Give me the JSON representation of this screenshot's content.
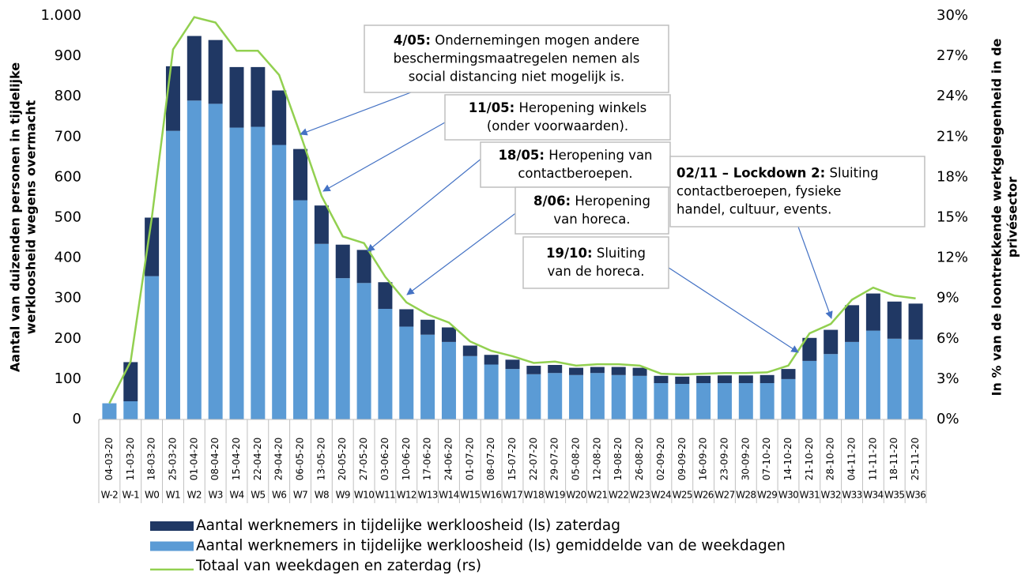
{
  "chart_data": {
    "type": "bar-line",
    "ylabel": [
      "Aantal van duizenden personen in tijdelijke",
      "werkloosheid wegens overmacht"
    ],
    "y2label": [
      "In % van de loontrekkende werkgelegenheid in de",
      "privésector"
    ],
    "categories": [
      "04-03-20",
      "11-03-20",
      "18-03-20",
      "25-03-20",
      "01-04-20",
      "08-04-20",
      "15-04-20",
      "22-04-20",
      "29-04-20",
      "06-05-20",
      "13-05-20",
      "20-05-20",
      "27-05-20",
      "03-06-20",
      "10-06-20",
      "17-06-20",
      "24-06-20",
      "01-07-20",
      "08-07-20",
      "15-07-20",
      "22-07-20",
      "29-07-20",
      "05-08-20",
      "12-08-20",
      "19-08-20",
      "26-08-20",
      "02-09-20",
      "09-09-20",
      "16-09-20",
      "23-09-20",
      "30-09-20",
      "07-10-20",
      "14-10-20",
      "21-10-20",
      "28-10-20",
      "04-11-20",
      "11-11-20",
      "18-11-20",
      "25-11-20"
    ],
    "week_labels": [
      "W-2",
      "W-1",
      "W0",
      "W1",
      "W2",
      "W3",
      "W4",
      "W5",
      "W6",
      "W7",
      "W8",
      "W9",
      "W10",
      "W11",
      "W12",
      "W13",
      "W14",
      "W15",
      "W16",
      "W17",
      "W18",
      "W19",
      "W20",
      "W21",
      "W22",
      "W23",
      "W24",
      "W25",
      "W26",
      "W27",
      "W28",
      "W29",
      "W30",
      "W31",
      "W32",
      "W33",
      "W34",
      "W35",
      "W36"
    ],
    "series": [
      {
        "name": "Aantal werknemers in tijdelijke werkloosheid (ls) gemiddelde van de weekdagen",
        "color": "#5b9bd5",
        "stack": true,
        "values": [
          40,
          45,
          355,
          715,
          790,
          782,
          723,
          725,
          680,
          543,
          435,
          350,
          338,
          274,
          230,
          210,
          192,
          157,
          136,
          125,
          112,
          115,
          110,
          115,
          110,
          108,
          90,
          88,
          90,
          90,
          90,
          90,
          100,
          145,
          162,
          192,
          220,
          200,
          198
        ]
      },
      {
        "name": "Aantal werknemers in tijdelijke werkloosheid (ls) zaterdag",
        "color": "#203864",
        "stack": true,
        "values": [
          0,
          97,
          145,
          160,
          160,
          158,
          150,
          148,
          135,
          127,
          95,
          83,
          82,
          66,
          43,
          37,
          36,
          26,
          24,
          23,
          21,
          20,
          18,
          15,
          20,
          20,
          18,
          18,
          18,
          19,
          19,
          20,
          25,
          57,
          60,
          91,
          92,
          92,
          89
        ]
      },
      {
        "name": "Totaal van weekdagen en zaterdag (rs)",
        "color": "#92d050",
        "axis": "y2",
        "values": [
          1.2,
          4.3,
          15,
          27.5,
          29.9,
          29.5,
          27.4,
          27.4,
          25.6,
          21.2,
          16.6,
          13.6,
          13.1,
          10.6,
          8.7,
          7.8,
          7.2,
          5.8,
          5.1,
          4.7,
          4.2,
          4.3,
          4.0,
          4.1,
          4.1,
          4.0,
          3.4,
          3.35,
          3.4,
          3.45,
          3.45,
          3.5,
          4.0,
          6.4,
          7.1,
          8.9,
          9.8,
          9.2,
          9.0
        ]
      }
    ],
    "legend_order": [
      1,
      0,
      2
    ],
    "ylim": [
      0,
      1000
    ],
    "yticks": [
      0,
      100,
      200,
      300,
      400,
      500,
      600,
      700,
      800,
      900,
      {
        "value": 1000,
        "label": "1.000"
      }
    ],
    "y2lim": [
      0,
      30
    ],
    "y2ticks": [
      {
        "value": 0,
        "label": "0%"
      },
      {
        "value": 3,
        "label": "3%"
      },
      {
        "value": 6,
        "label": "6%"
      },
      {
        "value": 9,
        "label": "9%"
      },
      {
        "value": 12,
        "label": "12%"
      },
      {
        "value": 15,
        "label": "15%"
      },
      {
        "value": 18,
        "label": "18%"
      },
      {
        "value": 21,
        "label": "21%"
      },
      {
        "value": 24,
        "label": "24%"
      },
      {
        "value": 27,
        "label": "27%"
      },
      {
        "value": 30,
        "label": "30%"
      }
    ],
    "annotations": [
      {
        "date": "4/05:",
        "lines": [
          "Ondernemingen mogen andere",
          "beschermingsmaatregelen nemen als",
          "social distancing niet mogelijk is."
        ]
      },
      {
        "date": "11/05:",
        "lines": [
          "Heropening winkels",
          "(onder voorwaarden)."
        ]
      },
      {
        "date": "18/05:",
        "lines": [
          "Heropening van",
          "contactberoepen."
        ]
      },
      {
        "date": "8/06:",
        "lines": [
          "Heropening",
          "van horeca."
        ]
      },
      {
        "date": "02/11 – Lockdown 2:",
        "lines": [
          "Sluiting",
          "contactberoepen, fysieke",
          "handel, cultuur, events."
        ]
      },
      {
        "date": "19/10:",
        "lines": [
          "Sluiting",
          "van de horeca."
        ]
      }
    ]
  }
}
